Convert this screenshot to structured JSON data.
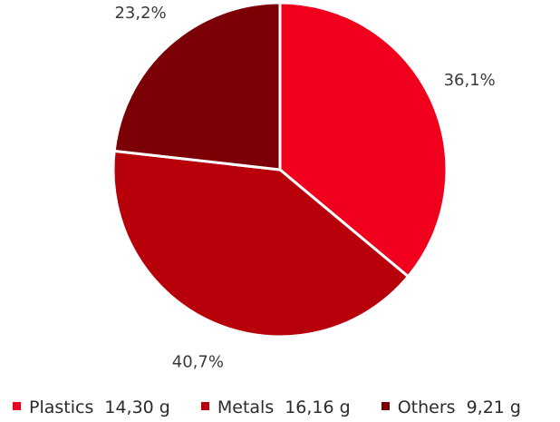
{
  "chart_data": {
    "type": "pie",
    "title": "",
    "slices": [
      {
        "name": "Plastics",
        "value": 14.3,
        "value_label": "14,30 g",
        "percent_label": "36,1%",
        "color": "#f0001c"
      },
      {
        "name": "Metals",
        "value": 16.16,
        "value_label": "16,16 g",
        "percent_label": "40,7%",
        "color": "#b8000b"
      },
      {
        "name": "Others",
        "value": 9.21,
        "value_label": "9,21 g",
        "percent_label": "23,2%",
        "color": "#7a0006"
      }
    ],
    "start_angle_deg": 0,
    "direction": "clockwise",
    "legend_position": "bottom-left"
  }
}
